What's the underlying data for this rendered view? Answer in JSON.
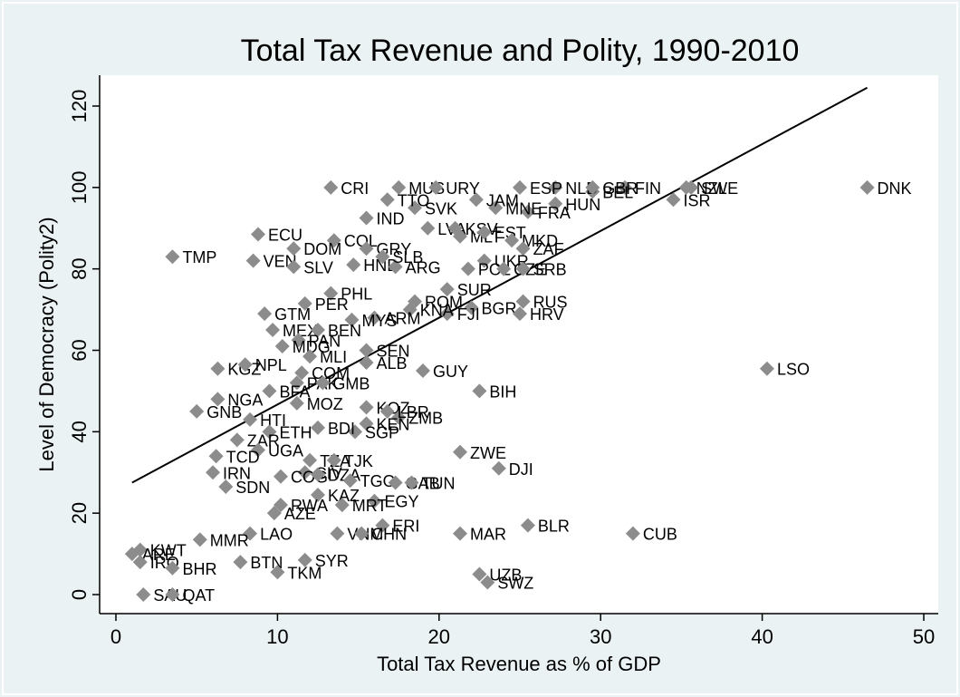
{
  "chart_data": {
    "type": "scatter",
    "title": "Total Tax Revenue and Polity, 1990-2010",
    "xlabel": "Total Tax Revenue as % of GDP",
    "ylabel": "Level of Democracy (Polity2)",
    "xlim": [
      0,
      50
    ],
    "ylim": [
      0,
      120
    ],
    "xticks": [
      0,
      10,
      20,
      30,
      40,
      50
    ],
    "yticks": [
      0,
      20,
      40,
      60,
      80,
      100,
      120
    ],
    "grid": false,
    "legend": "none",
    "colors": {
      "background": "#eaf2f3",
      "plot_background": "#ffffff",
      "marker": "#8c8c8c",
      "line": "#000000"
    },
    "fit_line": {
      "x": [
        1,
        46.5
      ],
      "y": [
        27.5,
        124.5
      ]
    },
    "points": [
      {
        "label": "DNK",
        "x": 46.5,
        "y": 100
      },
      {
        "label": "LSO",
        "x": 40.3,
        "y": 55.5
      },
      {
        "label": "CUB",
        "x": 32.0,
        "y": 15
      },
      {
        "label": "ISR",
        "x": 34.5,
        "y": 97
      },
      {
        "label": "NZL",
        "x": 35.3,
        "y": 100
      },
      {
        "label": "SWE",
        "x": 35.6,
        "y": 100
      },
      {
        "label": "FIN",
        "x": 31.5,
        "y": 100
      },
      {
        "label": "BEL",
        "x": 29.5,
        "y": 99
      },
      {
        "label": "NLD",
        "x": 27.2,
        "y": 100
      },
      {
        "label": "GBR",
        "x": 29.5,
        "y": 100
      },
      {
        "label": "HUN",
        "x": 27.2,
        "y": 96
      },
      {
        "label": "FRA",
        "x": 25.5,
        "y": 94
      },
      {
        "label": "MNE",
        "x": 23.5,
        "y": 95
      },
      {
        "label": "JAM",
        "x": 22.3,
        "y": 97
      },
      {
        "label": "ESP",
        "x": 25.0,
        "y": 100
      },
      {
        "label": "SVK",
        "x": 18.5,
        "y": 95
      },
      {
        "label": "TTO",
        "x": 16.8,
        "y": 97
      },
      {
        "label": "MUS",
        "x": 17.5,
        "y": 100
      },
      {
        "label": "URY",
        "x": 19.8,
        "y": 100
      },
      {
        "label": "CRI",
        "x": 13.3,
        "y": 100
      },
      {
        "label": "IND",
        "x": 15.5,
        "y": 92.5
      },
      {
        "label": "LVA",
        "x": 19.3,
        "y": 90
      },
      {
        "label": "KSV",
        "x": 21.0,
        "y": 90
      },
      {
        "label": "MLT",
        "x": 21.3,
        "y": 88
      },
      {
        "label": "EST",
        "x": 22.8,
        "y": 89
      },
      {
        "label": "MKD",
        "x": 24.5,
        "y": 87
      },
      {
        "label": "ZAF",
        "x": 25.2,
        "y": 85
      },
      {
        "label": "UKR",
        "x": 22.8,
        "y": 82
      },
      {
        "label": "POL",
        "x": 21.8,
        "y": 80
      },
      {
        "label": "CZE",
        "x": 24.0,
        "y": 80
      },
      {
        "label": "SRB",
        "x": 25.2,
        "y": 80
      },
      {
        "label": "ECU",
        "x": 8.8,
        "y": 88.5
      },
      {
        "label": "COL",
        "x": 13.5,
        "y": 87
      },
      {
        "label": "DOM",
        "x": 11.0,
        "y": 85
      },
      {
        "label": "VEN",
        "x": 8.5,
        "y": 82
      },
      {
        "label": "TMP",
        "x": 3.5,
        "y": 83
      },
      {
        "label": "SLV",
        "x": 11.0,
        "y": 80.5
      },
      {
        "label": "HND",
        "x": 14.7,
        "y": 81
      },
      {
        "label": "ARG",
        "x": 17.3,
        "y": 80.5
      },
      {
        "label": "GRY",
        "x": 15.5,
        "y": 85
      },
      {
        "label": "SLB",
        "x": 16.5,
        "y": 83
      },
      {
        "label": "SUR",
        "x": 20.5,
        "y": 75
      },
      {
        "label": "PHL",
        "x": 13.3,
        "y": 74
      },
      {
        "label": "PER",
        "x": 11.7,
        "y": 71.5
      },
      {
        "label": "ROM",
        "x": 18.5,
        "y": 72
      },
      {
        "label": "BGR",
        "x": 22.0,
        "y": 70.5
      },
      {
        "label": "RUS",
        "x": 25.2,
        "y": 72
      },
      {
        "label": "HRV",
        "x": 25.0,
        "y": 69
      },
      {
        "label": "FJI",
        "x": 20.5,
        "y": 69
      },
      {
        "label": "KNA",
        "x": 18.2,
        "y": 70
      },
      {
        "label": "ARM",
        "x": 16.0,
        "y": 68
      },
      {
        "label": "MYS",
        "x": 14.6,
        "y": 67.5
      },
      {
        "label": "GTM",
        "x": 9.2,
        "y": 69
      },
      {
        "label": "MEX",
        "x": 9.7,
        "y": 65
      },
      {
        "label": "BEN",
        "x": 12.5,
        "y": 65
      },
      {
        "label": "PAN",
        "x": 11.3,
        "y": 62.5
      },
      {
        "label": "MDG",
        "x": 10.3,
        "y": 61
      },
      {
        "label": "SEN",
        "x": 15.5,
        "y": 60
      },
      {
        "label": "MLI",
        "x": 12.0,
        "y": 58.5
      },
      {
        "label": "ALB",
        "x": 15.5,
        "y": 57
      },
      {
        "label": "GUY",
        "x": 19.0,
        "y": 55
      },
      {
        "label": "BIH",
        "x": 22.5,
        "y": 50
      },
      {
        "label": "KGZ",
        "x": 6.3,
        "y": 55.5
      },
      {
        "label": "NPL",
        "x": 8.0,
        "y": 56.5
      },
      {
        "label": "COM",
        "x": 11.5,
        "y": 54.5
      },
      {
        "label": "PAK",
        "x": 11.2,
        "y": 52
      },
      {
        "label": "GMB",
        "x": 12.8,
        "y": 52
      },
      {
        "label": "BFA",
        "x": 9.5,
        "y": 50
      },
      {
        "label": "MOZ",
        "x": 11.2,
        "y": 47
      },
      {
        "label": "NGA",
        "x": 6.3,
        "y": 48
      },
      {
        "label": "GNB",
        "x": 5.0,
        "y": 45
      },
      {
        "label": "KOZ",
        "x": 15.5,
        "y": 46
      },
      {
        "label": "ZMB",
        "x": 17.5,
        "y": 43.5
      },
      {
        "label": "LBR",
        "x": 16.8,
        "y": 45
      },
      {
        "label": "KEN",
        "x": 15.5,
        "y": 42
      },
      {
        "label": "SGP",
        "x": 14.8,
        "y": 40
      },
      {
        "label": "BDI",
        "x": 12.5,
        "y": 41
      },
      {
        "label": "HTI",
        "x": 8.3,
        "y": 43
      },
      {
        "label": "ETH",
        "x": 9.5,
        "y": 40
      },
      {
        "label": "ZAR",
        "x": 7.5,
        "y": 38
      },
      {
        "label": "UGA",
        "x": 8.8,
        "y": 35.5
      },
      {
        "label": "TCD",
        "x": 6.2,
        "y": 34
      },
      {
        "label": "ZWE",
        "x": 21.3,
        "y": 35
      },
      {
        "label": "DJI",
        "x": 23.7,
        "y": 31
      },
      {
        "label": "TZA",
        "x": 12.0,
        "y": 33
      },
      {
        "label": "TJK",
        "x": 13.5,
        "y": 33
      },
      {
        "label": "IRN",
        "x": 6.0,
        "y": 30
      },
      {
        "label": "CIV",
        "x": 11.7,
        "y": 30
      },
      {
        "label": "COG",
        "x": 10.2,
        "y": 29
      },
      {
        "label": "DZA",
        "x": 12.5,
        "y": 29.5
      },
      {
        "label": "TGO",
        "x": 14.5,
        "y": 28
      },
      {
        "label": "GAB",
        "x": 17.3,
        "y": 27.5
      },
      {
        "label": "TUN",
        "x": 18.3,
        "y": 27.5
      },
      {
        "label": "SDN",
        "x": 6.8,
        "y": 26.5
      },
      {
        "label": "KAZ",
        "x": 12.5,
        "y": 24.5
      },
      {
        "label": "EGY",
        "x": 16.0,
        "y": 23
      },
      {
        "label": "BLR",
        "x": 25.5,
        "y": 17
      },
      {
        "label": "RWA",
        "x": 10.2,
        "y": 22
      },
      {
        "label": "MRT",
        "x": 14.0,
        "y": 22
      },
      {
        "label": "AZE",
        "x": 9.8,
        "y": 20
      },
      {
        "label": "ERI",
        "x": 16.5,
        "y": 17
      },
      {
        "label": "MAR",
        "x": 21.3,
        "y": 15
      },
      {
        "label": "VNM",
        "x": 13.7,
        "y": 15
      },
      {
        "label": "CHN",
        "x": 15.2,
        "y": 15
      },
      {
        "label": "LAO",
        "x": 8.3,
        "y": 15
      },
      {
        "label": "BTN",
        "x": 7.7,
        "y": 8
      },
      {
        "label": "MMR",
        "x": 5.2,
        "y": 13.5
      },
      {
        "label": "SYR",
        "x": 11.7,
        "y": 8.5
      },
      {
        "label": "TKM",
        "x": 10.0,
        "y": 5.5
      },
      {
        "label": "UZB",
        "x": 22.5,
        "y": 5
      },
      {
        "label": "SWZ",
        "x": 23.0,
        "y": 3
      },
      {
        "label": "KWT",
        "x": 1.5,
        "y": 11
      },
      {
        "label": "ARE",
        "x": 1.0,
        "y": 10
      },
      {
        "label": "IRQ",
        "x": 1.5,
        "y": 8
      },
      {
        "label": "BHR",
        "x": 3.5,
        "y": 6.5
      },
      {
        "label": "SAU",
        "x": 1.7,
        "y": 0
      },
      {
        "label": "QAT",
        "x": 3.5,
        "y": 0
      }
    ]
  }
}
